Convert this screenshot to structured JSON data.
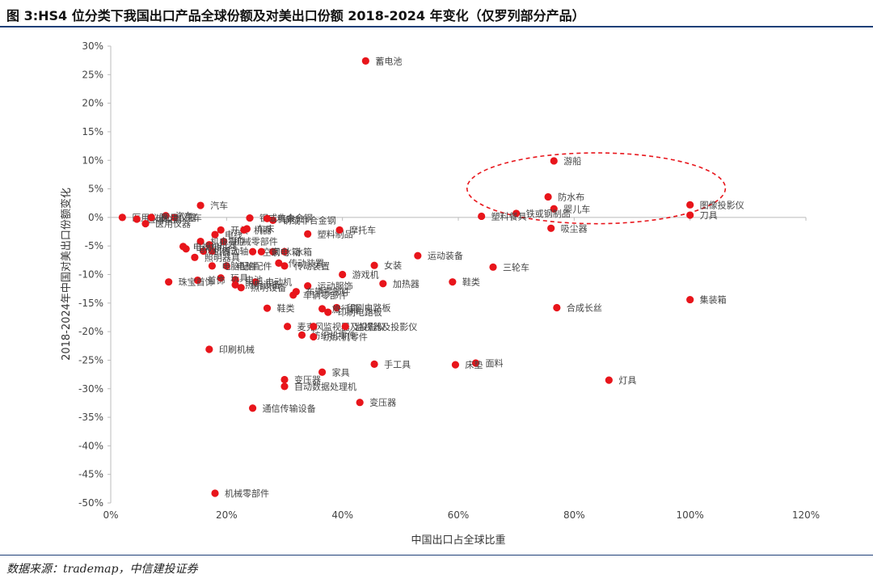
{
  "figure": {
    "title": "图 3:HS4 位分类下我国出口产品全球份额及对美出口份额 2018-2024 年变化（仅罗列部分产品）",
    "source": "数据来源：trademap，中信建投证券"
  },
  "chart_data": {
    "type": "scatter",
    "xlabel": "中国出口占全球比重",
    "ylabel": "2018-2024年中国对美出口份额变化",
    "xlim": [
      0,
      120
    ],
    "ylim": [
      -50,
      30
    ],
    "xticks": [
      0,
      20,
      40,
      60,
      80,
      100,
      120
    ],
    "yticks": [
      30,
      25,
      20,
      15,
      10,
      5,
      0,
      -5,
      -10,
      -15,
      -20,
      -25,
      -30,
      -35,
      -40,
      -45,
      -50
    ],
    "xtick_labels": [
      "0%",
      "20%",
      "40%",
      "60%",
      "80%",
      "100%",
      "120%"
    ],
    "ytick_labels": [
      "30%",
      "25%",
      "20%",
      "15%",
      "10%",
      "5%",
      "0%",
      "-5%",
      "-10%",
      "-15%",
      "-20%",
      "-25%",
      "-30%",
      "-35%",
      "-40%",
      "-45%",
      "-50%"
    ],
    "grid": false,
    "marker_color": "#e8151b",
    "highlight_ellipse": {
      "cx": 83.8,
      "cy": 5.1,
      "rx": 22.3,
      "ry": 6.2,
      "color": "#e8151b",
      "style": "dashed"
    },
    "points": [
      {
        "x": 44.0,
        "y": 27.4,
        "label": "蓄电池"
      },
      {
        "x": 76.5,
        "y": 9.9,
        "label": "游船"
      },
      {
        "x": 75.5,
        "y": 3.6,
        "label": "防水布"
      },
      {
        "x": 76.5,
        "y": 1.5,
        "label": "婴儿车"
      },
      {
        "x": 70.0,
        "y": 0.7,
        "label": "铁或钢制品"
      },
      {
        "x": 64.0,
        "y": 0.2,
        "label": "塑料餐具"
      },
      {
        "x": 76.0,
        "y": -1.9,
        "label": "吸尘器"
      },
      {
        "x": 100.0,
        "y": 2.2,
        "label": "图像投影仪"
      },
      {
        "x": 100.0,
        "y": 0.4,
        "label": "刀具"
      },
      {
        "x": 100.0,
        "y": -14.4,
        "label": "集装箱"
      },
      {
        "x": 53.0,
        "y": -6.7,
        "label": "运动装备"
      },
      {
        "x": 66.0,
        "y": -8.7,
        "label": "三轮车"
      },
      {
        "x": 45.5,
        "y": -8.4,
        "label": "女装"
      },
      {
        "x": 40.0,
        "y": -10.0,
        "label": "游戏机"
      },
      {
        "x": 47.0,
        "y": -11.6,
        "label": "加热器"
      },
      {
        "x": 59.0,
        "y": -11.3,
        "label": "鞋类"
      },
      {
        "x": 77.0,
        "y": -15.8,
        "label": "合成长丝"
      },
      {
        "x": 86.0,
        "y": -28.5,
        "label": "灯具"
      },
      {
        "x": 63.0,
        "y": -25.5,
        "label": "面料"
      },
      {
        "x": 59.5,
        "y": -25.8,
        "label": "床垫"
      },
      {
        "x": 45.5,
        "y": -25.7,
        "label": "手工具"
      },
      {
        "x": 36.5,
        "y": -27.1,
        "label": "家具"
      },
      {
        "x": 30.0,
        "y": -28.4,
        "label": "变压器"
      },
      {
        "x": 30.0,
        "y": -29.6,
        "label": "自动数据处理机"
      },
      {
        "x": 43.0,
        "y": -32.4,
        "label": "变压器"
      },
      {
        "x": 24.5,
        "y": -33.4,
        "label": "通信传输设备"
      },
      {
        "x": 17.0,
        "y": -23.1,
        "label": "印刷机械"
      },
      {
        "x": 18.0,
        "y": -48.3,
        "label": "机械零部件"
      },
      {
        "x": 27.0,
        "y": -15.9,
        "label": "鞋类"
      },
      {
        "x": 30.5,
        "y": -19.1,
        "label": "麦克风"
      },
      {
        "x": 35.0,
        "y": -19.1,
        "label": "监视器及投影仪"
      },
      {
        "x": 40.5,
        "y": -19.1,
        "label": "监视器及投影仪"
      },
      {
        "x": 33.0,
        "y": -20.6,
        "label": "纺织机零件"
      },
      {
        "x": 35.0,
        "y": -20.9,
        "label": "纺织机零件"
      },
      {
        "x": 39.0,
        "y": -15.8,
        "label": "印刷电路板"
      },
      {
        "x": 36.5,
        "y": -16.0,
        "label": "旅行箱"
      },
      {
        "x": 37.5,
        "y": -16.6,
        "label": "印刷电路板"
      },
      {
        "x": 34.0,
        "y": -12.0,
        "label": "运动服饰"
      },
      {
        "x": 32.0,
        "y": -13.0,
        "label": "车辆零部件"
      },
      {
        "x": 31.5,
        "y": -13.6,
        "label": "车辆零部件"
      },
      {
        "x": 25.0,
        "y": -11.3,
        "label": "电动机"
      },
      {
        "x": 22.5,
        "y": -12.3,
        "label": "照明设备"
      },
      {
        "x": 21.5,
        "y": -11.8,
        "label": "照明设备"
      },
      {
        "x": 21.5,
        "y": -10.9,
        "label": "电池"
      },
      {
        "x": 19.0,
        "y": -10.6,
        "label": "玩具"
      },
      {
        "x": 15.0,
        "y": -11.0,
        "label": "首饰"
      },
      {
        "x": 10.0,
        "y": -11.3,
        "label": "珠宝首饰"
      },
      {
        "x": 29.0,
        "y": -8.0,
        "label": "传动装置"
      },
      {
        "x": 30.0,
        "y": -8.5,
        "label": "传动装置"
      },
      {
        "x": 20.0,
        "y": -8.5,
        "label": "电脑配件"
      },
      {
        "x": 17.5,
        "y": -8.5,
        "label": "电脑配件"
      },
      {
        "x": 28.0,
        "y": -6.0,
        "label": "冰箱"
      },
      {
        "x": 30.0,
        "y": -6.0,
        "label": "冰箱"
      },
      {
        "x": 24.5,
        "y": -6.0,
        "label": "空调"
      },
      {
        "x": 26.0,
        "y": -6.0,
        "label": "家电"
      },
      {
        "x": 19.5,
        "y": -4.2,
        "label": "机械零部件"
      },
      {
        "x": 15.5,
        "y": -4.2,
        "label": "机电零件"
      },
      {
        "x": 17.0,
        "y": -4.8,
        "label": "机器"
      },
      {
        "x": 17.5,
        "y": -5.9,
        "label": "传动轴"
      },
      {
        "x": 14.5,
        "y": -7.0,
        "label": "照明器具"
      },
      {
        "x": 16.0,
        "y": -5.9,
        "label": "机器人"
      },
      {
        "x": 18.0,
        "y": -3.0,
        "label": "电线"
      },
      {
        "x": 19.0,
        "y": -2.2,
        "label": "开关"
      },
      {
        "x": 23.0,
        "y": -2.2,
        "label": "机器"
      },
      {
        "x": 23.5,
        "y": -2.0,
        "label": "车床"
      },
      {
        "x": 12.5,
        "y": -5.1,
        "label": "电视机"
      },
      {
        "x": 13.0,
        "y": -5.5,
        "label": "电视机"
      },
      {
        "x": 34.0,
        "y": -2.9,
        "label": "塑料制品"
      },
      {
        "x": 39.5,
        "y": -2.2,
        "label": "摩托车"
      },
      {
        "x": 28.0,
        "y": -0.5,
        "label": "钢或非合金钢"
      },
      {
        "x": 24.0,
        "y": -0.1,
        "label": "钢或非合金钢"
      },
      {
        "x": 27.0,
        "y": -0.2,
        "label": "机床"
      },
      {
        "x": 15.5,
        "y": 2.1,
        "label": "汽车"
      },
      {
        "x": 9.5,
        "y": 0.3,
        "label": "汽车"
      },
      {
        "x": 11.0,
        "y": 0.0,
        "label": "汽车"
      },
      {
        "x": 2.0,
        "y": 0.0,
        "label": "医用仪器"
      },
      {
        "x": 4.5,
        "y": -0.3,
        "label": "医用仪器"
      },
      {
        "x": 6.0,
        "y": -1.1,
        "label": "医用仪器"
      },
      {
        "x": 7.0,
        "y": 0.0,
        "label": "医用仪器"
      }
    ]
  }
}
